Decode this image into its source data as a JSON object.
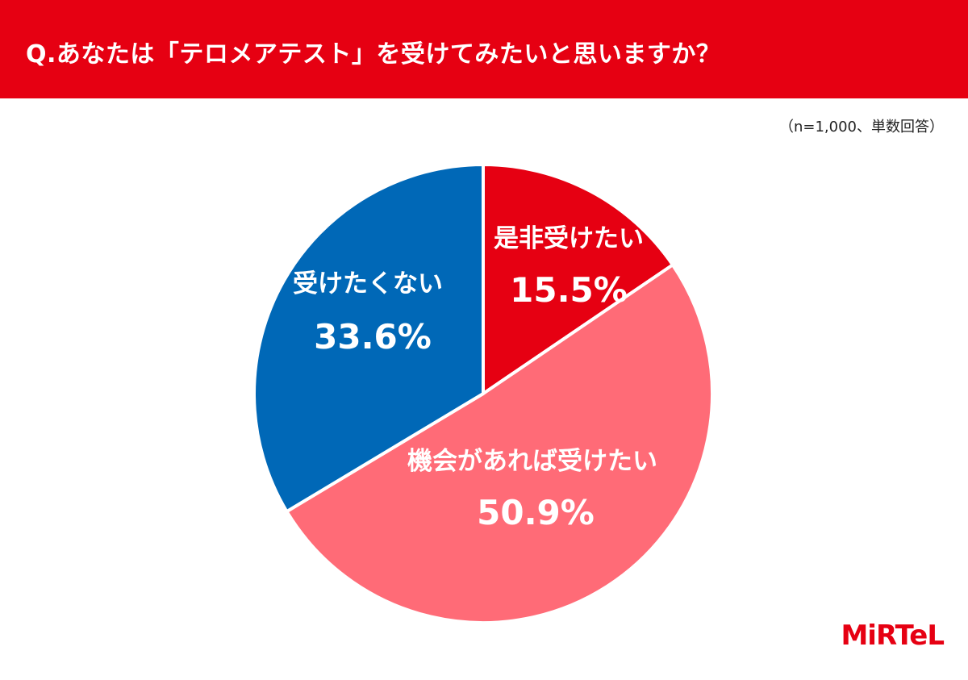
{
  "header": {
    "question": "Q.あなたは「テロメアテスト」を受けてみたいと思いますか？",
    "background_color": "#e60012"
  },
  "note": "（n=1,000、単数回答）",
  "chart_data": {
    "type": "pie",
    "start_angle_deg": 0,
    "direction": "clockwise",
    "slices": [
      {
        "label": "是非受けたい",
        "value": 15.5,
        "display": "15.5%",
        "color": "#e60012"
      },
      {
        "label": "機会があれば受けたい",
        "value": 50.9,
        "display": "50.9%",
        "color": "#ff6b77"
      },
      {
        "label": "受けたくない",
        "value": 33.6,
        "display": "33.6%",
        "color": "#0068b7"
      }
    ]
  },
  "logo": {
    "text": "MiRTeL",
    "color": "#e60012"
  }
}
